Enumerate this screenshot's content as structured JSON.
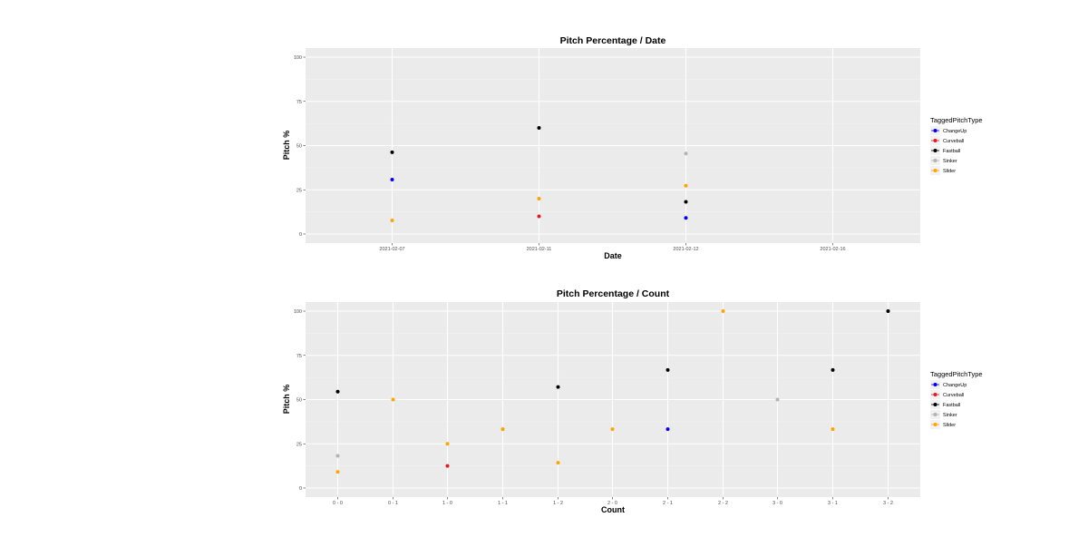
{
  "chart_data": [
    {
      "type": "scatter",
      "title": "Pitch Percentage / Date",
      "xlabel": "Date",
      "ylabel": "Pitch %",
      "x_ticks": [
        "2021-02-07",
        "2021-02-11",
        "2021-02-12",
        "2021-02-16"
      ],
      "y_ticks": [
        "0",
        "25",
        "50",
        "75",
        "100"
      ],
      "ylim": [
        0,
        100
      ],
      "grid": true,
      "legend": {
        "title": "TaggedPitchType",
        "position": "right"
      },
      "series": [
        {
          "name": "ChangeUp",
          "color": "#0000ff",
          "points": [
            {
              "x": "2021-02-07",
              "y": 30.8
            },
            {
              "x": "2021-02-12",
              "y": 9.1
            }
          ]
        },
        {
          "name": "Curveball",
          "color": "#e41a1c",
          "points": [
            {
              "x": "2021-02-11",
              "y": 10
            }
          ]
        },
        {
          "name": "Fastball",
          "color": "#000000",
          "points": [
            {
              "x": "2021-02-07",
              "y": 46.2
            },
            {
              "x": "2021-02-11",
              "y": 60
            },
            {
              "x": "2021-02-12",
              "y": 18.2
            }
          ]
        },
        {
          "name": "Sinker",
          "color": "#b3b3b3",
          "points": [
            {
              "x": "2021-02-12",
              "y": 45.5
            }
          ]
        },
        {
          "name": "Slider",
          "color": "#ffa500",
          "points": [
            {
              "x": "2021-02-07",
              "y": 7.7
            },
            {
              "x": "2021-02-11",
              "y": 20
            },
            {
              "x": "2021-02-12",
              "y": 27.3
            }
          ]
        }
      ]
    },
    {
      "type": "scatter",
      "title": "Pitch Percentage / Count",
      "xlabel": "Count",
      "ylabel": "Pitch %",
      "x_ticks": [
        "0 - 0",
        "0 - 1",
        "1 - 0",
        "1 - 1",
        "1 - 2",
        "2 - 0",
        "2 - 1",
        "2 - 2",
        "3 - 0",
        "3 - 1",
        "3 - 2"
      ],
      "y_ticks": [
        "0",
        "25",
        "50",
        "75",
        "100"
      ],
      "ylim": [
        0,
        100
      ],
      "grid": true,
      "legend": {
        "title": "TaggedPitchType",
        "position": "right"
      },
      "series": [
        {
          "name": "ChangeUp",
          "color": "#0000ff",
          "points": [
            {
              "x": "2 - 1",
              "y": 33.3
            }
          ]
        },
        {
          "name": "Curveball",
          "color": "#e41a1c",
          "points": [
            {
              "x": "1 - 0",
              "y": 12.5
            }
          ]
        },
        {
          "name": "Fastball",
          "color": "#000000",
          "points": [
            {
              "x": "0 - 0",
              "y": 54.5
            },
            {
              "x": "1 - 2",
              "y": 57.1
            },
            {
              "x": "2 - 1",
              "y": 66.7
            },
            {
              "x": "3 - 1",
              "y": 66.7
            },
            {
              "x": "3 - 2",
              "y": 100
            }
          ]
        },
        {
          "name": "Sinker",
          "color": "#b3b3b3",
          "points": [
            {
              "x": "0 - 0",
              "y": 18.2
            },
            {
              "x": "1 - 1",
              "y": 33.3
            },
            {
              "x": "3 - 0",
              "y": 50
            }
          ]
        },
        {
          "name": "Slider",
          "color": "#ffa500",
          "points": [
            {
              "x": "0 - 0",
              "y": 9.1
            },
            {
              "x": "0 - 1",
              "y": 50
            },
            {
              "x": "1 - 0",
              "y": 25
            },
            {
              "x": "1 - 1",
              "y": 33.3
            },
            {
              "x": "1 - 2",
              "y": 14.3
            },
            {
              "x": "2 - 0",
              "y": 33.3
            },
            {
              "x": "2 - 2",
              "y": 100
            },
            {
              "x": "3 - 1",
              "y": 33.3
            }
          ]
        }
      ]
    }
  ]
}
